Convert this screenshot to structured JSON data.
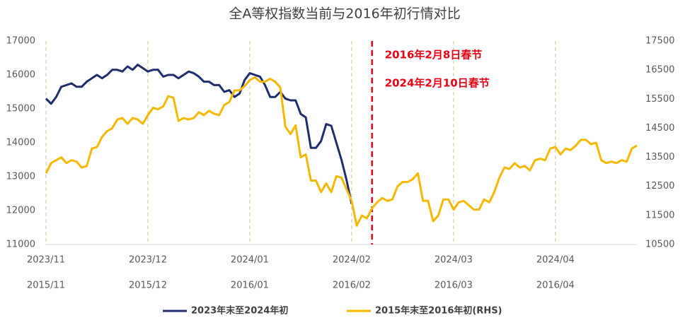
{
  "chart_data": {
    "type": "line",
    "title": "全A等权指数当前与2016年初行情对比",
    "xlim": [
      0,
      116
    ],
    "xticks": [
      {
        "value": 0,
        "label": "2023/11"
      },
      {
        "value": 20,
        "label": "2023/12"
      },
      {
        "value": 40,
        "label": "2024/01"
      },
      {
        "value": 60,
        "label": "2024/02"
      },
      {
        "value": 80,
        "label": "2024/03"
      },
      {
        "value": 100,
        "label": "2024/04"
      }
    ],
    "xticks_secondary": [
      {
        "value": 0,
        "label": "2015/11"
      },
      {
        "value": 20,
        "label": "2015/12"
      },
      {
        "value": 40,
        "label": "2016/01"
      },
      {
        "value": 60,
        "label": "2016/02"
      },
      {
        "value": 80,
        "label": "2016/03"
      },
      {
        "value": 100,
        "label": "2016/04"
      }
    ],
    "ylim": [
      11000,
      17000
    ],
    "yticks": [
      11000,
      12000,
      13000,
      14000,
      15000,
      16000,
      17000
    ],
    "y2lim": [
      10500,
      17500
    ],
    "y2ticks": [
      10500,
      11500,
      12500,
      13500,
      14500,
      15500,
      16500,
      17500
    ],
    "vertical_grid": true,
    "legend": "bottom",
    "vline": {
      "x": 64,
      "color": "#e60012"
    },
    "annotations": [
      {
        "text": "2016年2月8日春节",
        "color": "#e60012"
      },
      {
        "text": "2024年2月10日春节",
        "color": "#e60012"
      }
    ],
    "series": [
      {
        "name": "2023年末至2024年初",
        "color": "#1f2d6b",
        "axis": "y",
        "values": [
          15300,
          15150,
          15350,
          15650,
          15700,
          15750,
          15650,
          15650,
          15800,
          15900,
          16000,
          15900,
          16000,
          16150,
          16150,
          16100,
          16250,
          16150,
          16300,
          16200,
          16100,
          16150,
          16150,
          15950,
          16000,
          16000,
          15900,
          16000,
          16100,
          16050,
          15950,
          15800,
          15800,
          15700,
          15700,
          15500,
          15550,
          15350,
          15450,
          15850,
          16050,
          16000,
          15950,
          15700,
          15350,
          15350,
          15500,
          15300,
          15250,
          15250,
          14850,
          14750,
          13850,
          13850,
          14050,
          14550,
          14500,
          14000,
          13500,
          12900,
          12200
        ]
      },
      {
        "name": "2015年末至2016年初(RHS)",
        "color": "#f5b800",
        "axis": "y2",
        "values": [
          12950,
          13300,
          13400,
          13500,
          13300,
          13400,
          13350,
          13150,
          13200,
          13800,
          13850,
          14200,
          14400,
          14500,
          14800,
          14850,
          14650,
          14850,
          14800,
          14650,
          14950,
          15200,
          15150,
          15250,
          15600,
          15550,
          14750,
          14850,
          14800,
          14850,
          15050,
          14950,
          15100,
          15000,
          14950,
          15300,
          15400,
          15800,
          15800,
          15950,
          16150,
          16250,
          16100,
          16100,
          16200,
          16100,
          15900,
          14550,
          14300,
          14600,
          13500,
          13600,
          12700,
          12700,
          12300,
          12600,
          12300,
          12850,
          12800,
          12400,
          12000,
          11150,
          11500,
          11400,
          11750,
          11950,
          12100,
          12000,
          12050,
          12500,
          12650,
          12650,
          12750,
          12950,
          12000,
          12000,
          11300,
          11500,
          12050,
          12050,
          11700,
          11950,
          12000,
          11850,
          11700,
          11700,
          12050,
          11950,
          12300,
          12800,
          13150,
          13100,
          13300,
          13150,
          13200,
          13050,
          13400,
          13450,
          13400,
          13800,
          13850,
          13600,
          13800,
          13750,
          13900,
          14100,
          14100,
          13950,
          14000,
          13400,
          13300,
          13350,
          13300,
          13400,
          13350,
          13800,
          13900
        ]
      }
    ]
  }
}
